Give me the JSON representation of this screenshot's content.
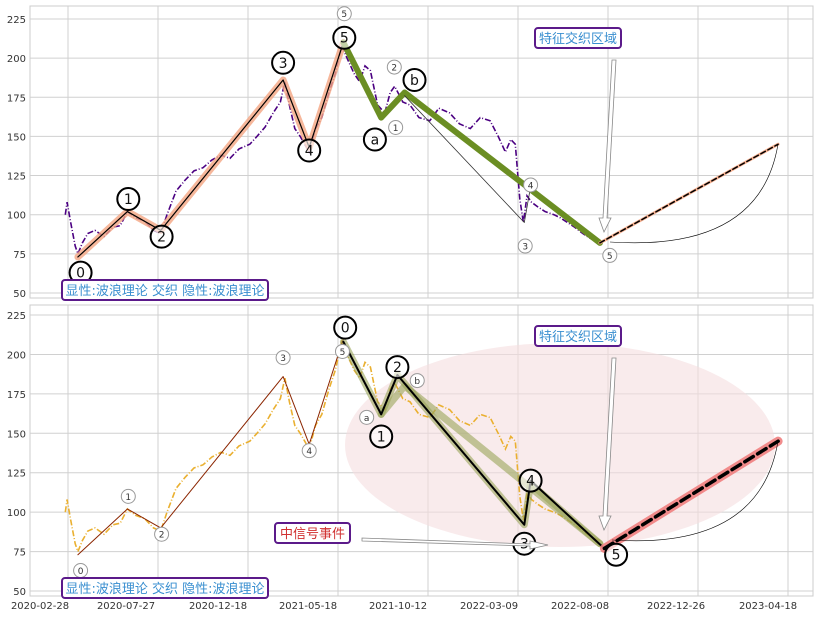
{
  "chart_data": {
    "type": "line",
    "title": "",
    "x_tick_labels": [
      "2020-02-28",
      "2020-07-27",
      "2020-12-18",
      "2021-05-18",
      "2021-10-12",
      "2022-03-09",
      "2022-08-08",
      "2022-12-26",
      "2023-04-18"
    ],
    "x_tick_index": [
      0,
      100,
      200,
      300,
      400,
      500,
      600,
      700,
      800
    ],
    "y_ticks": [
      50,
      75,
      100,
      125,
      150,
      175,
      200,
      225
    ],
    "ylim": [
      48,
      232
    ],
    "xlim": [
      -42,
      828
    ],
    "grid": true,
    "colors": {
      "top_price": "#4b0082",
      "bottom_price": "#eab030",
      "salmon": "#f4a582",
      "green": "#6b8e23",
      "olive": "#9aa55a",
      "red": "#f08080",
      "ellipse": "#f5dde0",
      "box_border": "#5b1a8a",
      "box_text_blue": "#3a8fd0",
      "box_text_red": "#d03030"
    },
    "price_series": [
      [
        -3,
        100
      ],
      [
        -1,
        108
      ],
      [
        3,
        95
      ],
      [
        8,
        80
      ],
      [
        11,
        75
      ],
      [
        16,
        82
      ],
      [
        22,
        88
      ],
      [
        30,
        90
      ],
      [
        40,
        86
      ],
      [
        50,
        92
      ],
      [
        58,
        93
      ],
      [
        66,
        102
      ],
      [
        75,
        98
      ],
      [
        85,
        96
      ],
      [
        95,
        90
      ],
      [
        103,
        88
      ],
      [
        110,
        100
      ],
      [
        120,
        115
      ],
      [
        130,
        122
      ],
      [
        140,
        128
      ],
      [
        150,
        130
      ],
      [
        160,
        135
      ],
      [
        170,
        138
      ],
      [
        180,
        136
      ],
      [
        190,
        142
      ],
      [
        202,
        145
      ],
      [
        210,
        150
      ],
      [
        219,
        156
      ],
      [
        228,
        165
      ],
      [
        236,
        172
      ],
      [
        241,
        185
      ],
      [
        246,
        170
      ],
      [
        252,
        155
      ],
      [
        258,
        150
      ],
      [
        263,
        145
      ],
      [
        268,
        140
      ],
      [
        275,
        155
      ],
      [
        282,
        162
      ],
      [
        290,
        178
      ],
      [
        297,
        190
      ],
      [
        304,
        208
      ],
      [
        310,
        200
      ],
      [
        318,
        190
      ],
      [
        324,
        185
      ],
      [
        330,
        195
      ],
      [
        336,
        192
      ],
      [
        344,
        170
      ],
      [
        352,
        165
      ],
      [
        358,
        178
      ],
      [
        363,
        182
      ],
      [
        372,
        172
      ],
      [
        380,
        170
      ],
      [
        390,
        162
      ],
      [
        402,
        160
      ],
      [
        412,
        168
      ],
      [
        424,
        165
      ],
      [
        435,
        158
      ],
      [
        447,
        155
      ],
      [
        458,
        162
      ],
      [
        469,
        160
      ],
      [
        478,
        150
      ],
      [
        486,
        140
      ],
      [
        492,
        148
      ],
      [
        497,
        145
      ],
      [
        502,
        110
      ],
      [
        506,
        95
      ],
      [
        510,
        112
      ],
      [
        515,
        108
      ],
      [
        522,
        105
      ],
      [
        530,
        102
      ],
      [
        540,
        100
      ],
      [
        547,
        98
      ],
      [
        555,
        95
      ],
      [
        563,
        92
      ],
      [
        572,
        88
      ],
      [
        580,
        85
      ],
      [
        587,
        83
      ],
      [
        591,
        82
      ]
    ],
    "panels": [
      {
        "name": "top",
        "price_color_key": "top_price",
        "waves": [
          {
            "name": "impulse-up",
            "color_key": "salmon",
            "width": 7,
            "opacity": 0.8,
            "points": [
              [
                11,
                73
              ],
              [
                66,
                102
              ],
              [
                103,
                90
              ],
              [
                239,
                186
              ],
              [
                268,
                143
              ],
              [
                306,
                210
              ]
            ]
          },
          {
            "name": "impulse-up-thin",
            "color": "#000000",
            "width": 1.2,
            "opacity": 1,
            "points": [
              [
                11,
                73
              ],
              [
                66,
                102
              ],
              [
                103,
                90
              ],
              [
                239,
                186
              ],
              [
                268,
                143
              ],
              [
                306,
                210
              ]
            ]
          },
          {
            "name": "correction-down",
            "color_key": "green",
            "width": 6,
            "opacity": 1,
            "points": [
              [
                306,
                210
              ],
              [
                348,
                162
              ],
              [
                374,
                178
              ],
              [
                591,
                82
              ]
            ]
          },
          {
            "name": "sub-wave-thin",
            "color": "#333333",
            "width": 0.8,
            "opacity": 1,
            "points": [
              [
                374,
                176
              ],
              [
                507,
                95
              ],
              [
                514,
                118
              ]
            ]
          },
          {
            "name": "projection-salmon",
            "color_key": "salmon",
            "width": 3,
            "opacity": 0.9,
            "points": [
              [
                591,
                82
              ],
              [
                789,
                145
              ]
            ]
          },
          {
            "name": "projection-dashed",
            "color": "#000000",
            "width": 1.5,
            "dash": "5,3",
            "opacity": 1,
            "points": [
              [
                591,
                82
              ],
              [
                789,
                145
              ]
            ]
          }
        ],
        "big_labels": [
          [
            "0",
            14,
            63
          ],
          [
            "1",
            67,
            110
          ],
          [
            "2",
            104,
            86
          ],
          [
            "3",
            239,
            197
          ],
          [
            "4",
            268,
            141
          ],
          [
            "5",
            307,
            213
          ],
          [
            "a",
            341,
            148
          ],
          [
            "b",
            385,
            186
          ]
        ],
        "small_labels": [
          [
            "5",
            307,
            219
          ],
          [
            "2",
            366,
            193
          ],
          [
            "1",
            347,
            150
          ],
          [
            "4",
            514,
            119
          ],
          [
            "3",
            508,
            80
          ],
          [
            "5",
            602,
            74
          ]
        ],
        "boxes": [
          {
            "text": "特征交织区域",
            "kind": "blue"
          },
          {
            "text": "显性:波浪理论 交织 隐性:波浪理论",
            "kind": "blue"
          }
        ]
      },
      {
        "name": "bottom",
        "price_color_key": "bottom_price",
        "waves": [
          {
            "name": "impulse-up-thin",
            "color": "#8b2500",
            "width": 1,
            "opacity": 1,
            "points": [
              [
                11,
                73
              ],
              [
                66,
                102
              ],
              [
                103,
                90
              ],
              [
                239,
                186
              ],
              [
                268,
                143
              ],
              [
                306,
                210
              ]
            ]
          },
          {
            "name": "correction-olive",
            "color_key": "olive",
            "width": 7,
            "opacity": 0.6,
            "points": [
              [
                306,
                208
              ],
              [
                348,
                162
              ],
              [
                374,
                180
              ],
              [
                591,
                80
              ]
            ]
          },
          {
            "name": "correction-olive2",
            "color_key": "olive",
            "width": 7,
            "opacity": 0.6,
            "points": [
              [
                348,
                162
              ],
              [
                366,
                187
              ],
              [
                507,
                92
              ],
              [
                514,
                118
              ],
              [
                591,
                80
              ]
            ]
          },
          {
            "name": "correction-black",
            "color": "#000000",
            "width": 2,
            "opacity": 1,
            "points": [
              [
                306,
                208
              ],
              [
                348,
                162
              ],
              [
                366,
                187
              ],
              [
                507,
                92
              ],
              [
                514,
                120
              ],
              [
                594,
                78
              ]
            ]
          },
          {
            "name": "projection-red",
            "color_key": "red",
            "width": 9,
            "opacity": 0.9,
            "points": [
              [
                596,
                77
              ],
              [
                789,
                145
              ]
            ]
          },
          {
            "name": "projection-dashed",
            "color": "#000000",
            "width": 3.5,
            "dash": "10,5",
            "opacity": 1,
            "points": [
              [
                596,
                77
              ],
              [
                789,
                145
              ]
            ]
          }
        ],
        "big_labels": [
          [
            "0",
            308,
            217
          ],
          [
            "1",
            348,
            148
          ],
          [
            "2",
            366,
            192
          ],
          [
            "3",
            507,
            80
          ],
          [
            "4",
            514,
            120
          ],
          [
            "5",
            609,
            73
          ]
        ],
        "small_labels": [
          [
            "0",
            14,
            63
          ],
          [
            "1",
            67,
            110
          ],
          [
            "2",
            104,
            86
          ],
          [
            "3",
            239,
            198
          ],
          [
            "4",
            268,
            139
          ],
          [
            "b",
            384,
            185
          ],
          [
            "a",
            344,
            151
          ],
          [
            "5",
            307,
            212
          ]
        ],
        "boxes": [
          {
            "text": "特征交织区域",
            "kind": "blue"
          },
          {
            "text": "中信号事件",
            "kind": "red"
          },
          {
            "text": "显性:波浪理论 交织 隐性:波浪理论",
            "kind": "blue"
          }
        ]
      }
    ]
  }
}
